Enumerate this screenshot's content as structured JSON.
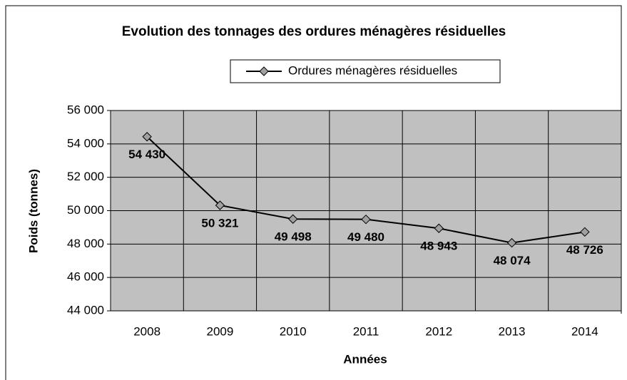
{
  "chart_data": {
    "type": "line",
    "title": "Evolution des tonnages des ordures ménagères résiduelles",
    "x_label": "Années",
    "y_label": "Poids (tonnes)",
    "categories": [
      "2008",
      "2009",
      "2010",
      "2011",
      "2012",
      "2013",
      "2014"
    ],
    "series": [
      {
        "name": "Ordures ménagères résiduelles",
        "color": "#000000",
        "values": [
          54430,
          50321,
          49498,
          49480,
          48943,
          48074,
          48726
        ],
        "value_labels": [
          "54 430",
          "50 321",
          "49 498",
          "49 480",
          "48 943",
          "48 074",
          "48 726"
        ]
      }
    ],
    "ylim": [
      44000,
      56000
    ],
    "yticks": [
      {
        "value": 44000,
        "label": "44 000"
      },
      {
        "value": 46000,
        "label": "46 000"
      },
      {
        "value": 48000,
        "label": "48 000"
      },
      {
        "value": 50000,
        "label": "50 000"
      },
      {
        "value": 52000,
        "label": "52 000"
      },
      {
        "value": 54000,
        "label": "54 000"
      },
      {
        "value": 56000,
        "label": "56 000"
      }
    ],
    "grid": true,
    "legend": "top",
    "background": "#c0c0c0"
  }
}
